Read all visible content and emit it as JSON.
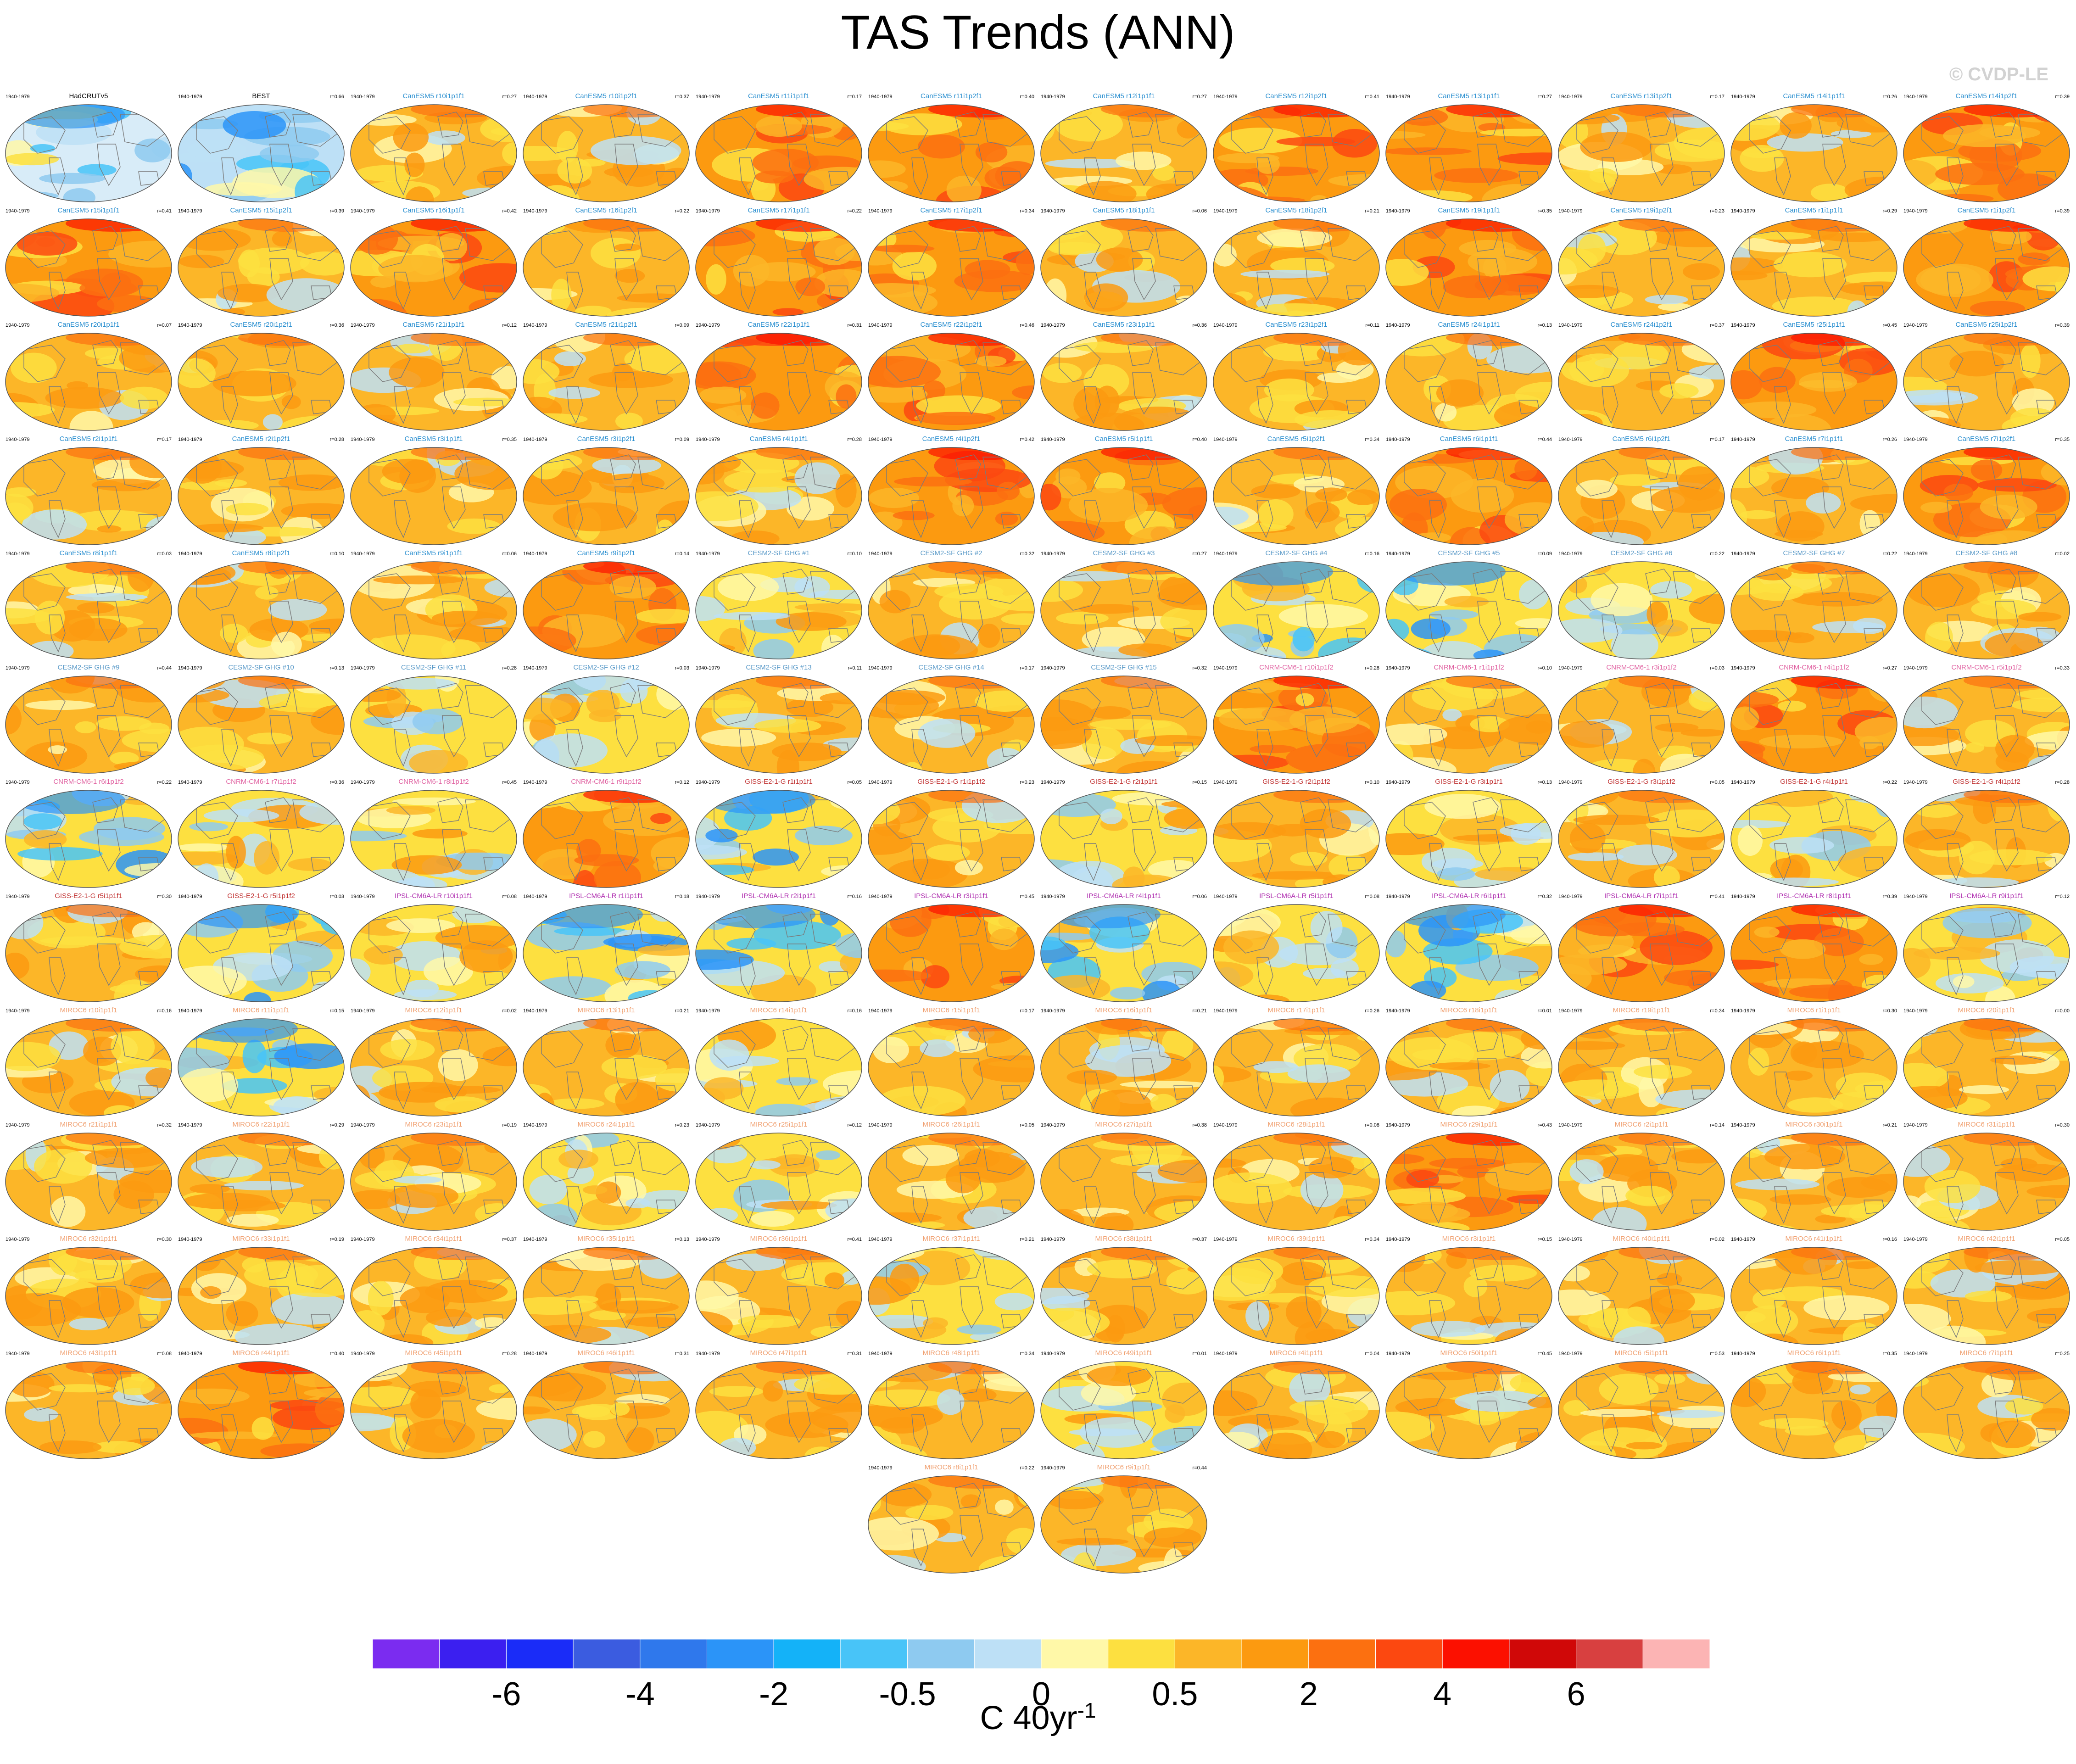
{
  "title": "TAS Trends (ANN)",
  "watermark": "© CVDP-LE",
  "colorbar": {
    "unit_base": "C 40yr",
    "unit_exp": "-1",
    "colors": [
      "#7b2cf0",
      "#3b1ff0",
      "#1a2cf8",
      "#3b5ce0",
      "#2f78ec",
      "#2b94f8",
      "#14b2f8",
      "#48c4f8",
      "#8ecaf0",
      "#bde0f6",
      "#fff8a8",
      "#fde040",
      "#fcb628",
      "#fc9a10",
      "#fc7010",
      "#fc4810",
      "#fc1000",
      "#d00808",
      "#d84040",
      "#fcb4b4"
    ],
    "ticks": [
      {
        "after_box": 2,
        "label": "-6"
      },
      {
        "after_box": 4,
        "label": "-4"
      },
      {
        "after_box": 6,
        "label": "-2"
      },
      {
        "after_box": 8,
        "label": "-0.5"
      },
      {
        "after_box": 10,
        "label": "0"
      },
      {
        "after_box": 12,
        "label": "0.5"
      },
      {
        "after_box": 14,
        "label": "2"
      },
      {
        "after_box": 16,
        "label": "4"
      },
      {
        "after_box": 18,
        "label": "6"
      }
    ]
  },
  "period": "1940-1979",
  "panels": [
    {
      "name": "HadCRUTv5",
      "r": "",
      "color": "#000000",
      "t": "obs1"
    },
    {
      "name": "BEST",
      "r": "r=0.66",
      "color": "#000000",
      "t": "obs2"
    },
    {
      "name": "CanESM5 r10i1p1f1",
      "r": "r=0.27",
      "color": "#2a8fd0",
      "t": "warm"
    },
    {
      "name": "CanESM5 r10i1p2f1",
      "r": "r=0.37",
      "color": "#2a8fd0",
      "t": "warm"
    },
    {
      "name": "CanESM5 r11i1p1f1",
      "r": "r=0.17",
      "color": "#2a8fd0",
      "t": "hot"
    },
    {
      "name": "CanESM5 r11i1p2f1",
      "r": "r=0.40",
      "color": "#2a8fd0",
      "t": "hot"
    },
    {
      "name": "CanESM5 r12i1p1f1",
      "r": "r=0.27",
      "color": "#2a8fd0",
      "t": "warm"
    },
    {
      "name": "CanESM5 r12i1p2f1",
      "r": "r=0.41",
      "color": "#2a8fd0",
      "t": "hot"
    },
    {
      "name": "CanESM5 r13i1p1f1",
      "r": "r=0.27",
      "color": "#2a8fd0",
      "t": "hot"
    },
    {
      "name": "CanESM5 r13i1p2f1",
      "r": "r=0.17",
      "color": "#2a8fd0",
      "t": "warm"
    },
    {
      "name": "CanESM5 r14i1p1f1",
      "r": "r=0.26",
      "color": "#2a8fd0",
      "t": "warm"
    },
    {
      "name": "CanESM5 r14i1p2f1",
      "r": "r=0.39",
      "color": "#2a8fd0",
      "t": "hot"
    },
    {
      "name": "CanESM5 r15i1p1f1",
      "r": "r=0.41",
      "color": "#2a8fd0",
      "t": "hot"
    },
    {
      "name": "CanESM5 r15i1p2f1",
      "r": "r=0.39",
      "color": "#2a8fd0",
      "t": "warm"
    },
    {
      "name": "CanESM5 r16i1p1f1",
      "r": "r=0.42",
      "color": "#2a8fd0",
      "t": "hot"
    },
    {
      "name": "CanESM5 r16i1p2f1",
      "r": "r=0.22",
      "color": "#2a8fd0",
      "t": "warm"
    },
    {
      "name": "CanESM5 r17i1p1f1",
      "r": "r=0.22",
      "color": "#2a8fd0",
      "t": "hot"
    },
    {
      "name": "CanESM5 r17i1p2f1",
      "r": "r=0.34",
      "color": "#2a8fd0",
      "t": "hot"
    },
    {
      "name": "CanESM5 r18i1p1f1",
      "r": "r=0.06",
      "color": "#2a8fd0",
      "t": "warm"
    },
    {
      "name": "CanESM5 r18i1p2f1",
      "r": "r=0.21",
      "color": "#2a8fd0",
      "t": "warm"
    },
    {
      "name": "CanESM5 r19i1p1f1",
      "r": "r=0.35",
      "color": "#2a8fd0",
      "t": "hot"
    },
    {
      "name": "CanESM5 r19i1p2f1",
      "r": "r=0.23",
      "color": "#2a8fd0",
      "t": "warm"
    },
    {
      "name": "CanESM5 r1i1p1f1",
      "r": "r=0.29",
      "color": "#2a8fd0",
      "t": "warm"
    },
    {
      "name": "CanESM5 r1i1p2f1",
      "r": "r=0.39",
      "color": "#2a8fd0",
      "t": "hot"
    },
    {
      "name": "CanESM5 r20i1p1f1",
      "r": "r=0.07",
      "color": "#2a8fd0",
      "t": "warm"
    },
    {
      "name": "CanESM5 r20i1p2f1",
      "r": "r=0.36",
      "color": "#2a8fd0",
      "t": "warm"
    },
    {
      "name": "CanESM5 r21i1p1f1",
      "r": "r=0.12",
      "color": "#2a8fd0",
      "t": "warm"
    },
    {
      "name": "CanESM5 r21i1p2f1",
      "r": "r=0.09",
      "color": "#2a8fd0",
      "t": "warm"
    },
    {
      "name": "CanESM5 r22i1p1f1",
      "r": "r=0.31",
      "color": "#2a8fd0",
      "t": "hot"
    },
    {
      "name": "CanESM5 r22i1p2f1",
      "r": "r=0.46",
      "color": "#2a8fd0",
      "t": "hot"
    },
    {
      "name": "CanESM5 r23i1p1f1",
      "r": "r=0.36",
      "color": "#2a8fd0",
      "t": "warm"
    },
    {
      "name": "CanESM5 r23i1p2f1",
      "r": "r=0.11",
      "color": "#2a8fd0",
      "t": "warm"
    },
    {
      "name": "CanESM5 r24i1p1f1",
      "r": "r=0.13",
      "color": "#2a8fd0",
      "t": "warm"
    },
    {
      "name": "CanESM5 r24i1p2f1",
      "r": "r=0.37",
      "color": "#2a8fd0",
      "t": "warm"
    },
    {
      "name": "CanESM5 r25i1p1f1",
      "r": "r=0.45",
      "color": "#2a8fd0",
      "t": "hot"
    },
    {
      "name": "CanESM5 r25i1p2f1",
      "r": "r=0.39",
      "color": "#2a8fd0",
      "t": "warm"
    },
    {
      "name": "CanESM5 r2i1p1f1",
      "r": "r=0.17",
      "color": "#2a8fd0",
      "t": "warm"
    },
    {
      "name": "CanESM5 r2i1p2f1",
      "r": "r=0.28",
      "color": "#2a8fd0",
      "t": "warm"
    },
    {
      "name": "CanESM5 r3i1p1f1",
      "r": "r=0.35",
      "color": "#2a8fd0",
      "t": "warm"
    },
    {
      "name": "CanESM5 r3i1p2f1",
      "r": "r=0.09",
      "color": "#2a8fd0",
      "t": "warm"
    },
    {
      "name": "CanESM5 r4i1p1f1",
      "r": "r=0.28",
      "color": "#2a8fd0",
      "t": "warm"
    },
    {
      "name": "CanESM5 r4i1p2f1",
      "r": "r=0.42",
      "color": "#2a8fd0",
      "t": "hot"
    },
    {
      "name": "CanESM5 r5i1p1f1",
      "r": "r=0.40",
      "color": "#2a8fd0",
      "t": "hot"
    },
    {
      "name": "CanESM5 r5i1p2f1",
      "r": "r=0.34",
      "color": "#2a8fd0",
      "t": "warm"
    },
    {
      "name": "CanESM5 r6i1p1f1",
      "r": "r=0.44",
      "color": "#2a8fd0",
      "t": "hot"
    },
    {
      "name": "CanESM5 r6i1p2f1",
      "r": "r=0.17",
      "color": "#2a8fd0",
      "t": "warm"
    },
    {
      "name": "CanESM5 r7i1p1f1",
      "r": "r=0.26",
      "color": "#2a8fd0",
      "t": "warm"
    },
    {
      "name": "CanESM5 r7i1p2f1",
      "r": "r=0.35",
      "color": "#2a8fd0",
      "t": "hot"
    },
    {
      "name": "CanESM5 r8i1p1f1",
      "r": "r=0.03",
      "color": "#2a8fd0",
      "t": "warm"
    },
    {
      "name": "CanESM5 r8i1p2f1",
      "r": "r=0.10",
      "color": "#2a8fd0",
      "t": "warm"
    },
    {
      "name": "CanESM5 r9i1p1f1",
      "r": "r=0.06",
      "color": "#2a8fd0",
      "t": "warm"
    },
    {
      "name": "CanESM5 r9i1p2f1",
      "r": "r=0.14",
      "color": "#2a8fd0",
      "t": "hot"
    },
    {
      "name": "CESM2-SF GHG #1",
      "r": "r=0.10",
      "color": "#5a9ac8",
      "t": "mixed"
    },
    {
      "name": "CESM2-SF GHG #2",
      "r": "r=0.32",
      "color": "#5a9ac8",
      "t": "warm"
    },
    {
      "name": "CESM2-SF GHG #3",
      "r": "r=0.27",
      "color": "#5a9ac8",
      "t": "warm"
    },
    {
      "name": "CESM2-SF GHG #4",
      "r": "r=0.16",
      "color": "#5a9ac8",
      "t": "cool"
    },
    {
      "name": "CESM2-SF GHG #5",
      "r": "r=0.09",
      "color": "#5a9ac8",
      "t": "cool"
    },
    {
      "name": "CESM2-SF GHG #6",
      "r": "r=0.22",
      "color": "#5a9ac8",
      "t": "mixed"
    },
    {
      "name": "CESM2-SF GHG #7",
      "r": "r=0.22",
      "color": "#5a9ac8",
      "t": "warm"
    },
    {
      "name": "CESM2-SF GHG #8",
      "r": "r=0.02",
      "color": "#5a9ac8",
      "t": "warm"
    },
    {
      "name": "CESM2-SF GHG #9",
      "r": "r=0.44",
      "color": "#5a9ac8",
      "t": "warm"
    },
    {
      "name": "CESM2-SF GHG #10",
      "r": "r=0.13",
      "color": "#5a9ac8",
      "t": "warm"
    },
    {
      "name": "CESM2-SF GHG #11",
      "r": "r=0.28",
      "color": "#5a9ac8",
      "t": "mixed"
    },
    {
      "name": "CESM2-SF GHG #12",
      "r": "r=0.03",
      "color": "#5a9ac8",
      "t": "mixed"
    },
    {
      "name": "CESM2-SF GHG #13",
      "r": "r=0.11",
      "color": "#5a9ac8",
      "t": "warm"
    },
    {
      "name": "CESM2-SF GHG #14",
      "r": "r=0.17",
      "color": "#5a9ac8",
      "t": "warm"
    },
    {
      "name": "CESM2-SF GHG #15",
      "r": "r=0.32",
      "color": "#5a9ac8",
      "t": "warm"
    },
    {
      "name": "CNRM-CM6-1 r10i1p1f2",
      "r": "r=0.28",
      "color": "#e060a0",
      "t": "hot"
    },
    {
      "name": "CNRM-CM6-1 r1i1p1f2",
      "r": "r=0.10",
      "color": "#e060a0",
      "t": "warm"
    },
    {
      "name": "CNRM-CM6-1 r3i1p1f2",
      "r": "r=0.03",
      "color": "#e060a0",
      "t": "warm"
    },
    {
      "name": "CNRM-CM6-1 r4i1p1f2",
      "r": "r=0.27",
      "color": "#e060a0",
      "t": "hot"
    },
    {
      "name": "CNRM-CM6-1 r5i1p1f2",
      "r": "r=0.33",
      "color": "#e060a0",
      "t": "warm"
    },
    {
      "name": "CNRM-CM6-1 r6i1p1f2",
      "r": "r=0.22",
      "color": "#e060a0",
      "t": "cool"
    },
    {
      "name": "CNRM-CM6-1 r7i1p1f2",
      "r": "r=0.36",
      "color": "#e060a0",
      "t": "mixed"
    },
    {
      "name": "CNRM-CM6-1 r8i1p1f2",
      "r": "r=0.45",
      "color": "#e060a0",
      "t": "mixed"
    },
    {
      "name": "CNRM-CM6-1 r9i1p1f2",
      "r": "r=0.12",
      "color": "#e060a0",
      "t": "hot"
    },
    {
      "name": "GISS-E2-1-G r1i1p1f1",
      "r": "r=0.05",
      "color": "#c03030",
      "t": "cool"
    },
    {
      "name": "GISS-E2-1-G r1i1p1f2",
      "r": "r=0.23",
      "color": "#c03030",
      "t": "warm"
    },
    {
      "name": "GISS-E2-1-G r2i1p1f1",
      "r": "r=0.15",
      "color": "#c03030",
      "t": "mixed"
    },
    {
      "name": "GISS-E2-1-G r2i1p1f2",
      "r": "r=0.10",
      "color": "#c03030",
      "t": "warm"
    },
    {
      "name": "GISS-E2-1-G r3i1p1f1",
      "r": "r=0.13",
      "color": "#c03030",
      "t": "mixed"
    },
    {
      "name": "GISS-E2-1-G r3i1p1f2",
      "r": "r=0.05",
      "color": "#c03030",
      "t": "warm"
    },
    {
      "name": "GISS-E2-1-G r4i1p1f1",
      "r": "r=0.22",
      "color": "#c03030",
      "t": "mixed"
    },
    {
      "name": "GISS-E2-1-G r4i1p1f2",
      "r": "r=0.28",
      "color": "#c03030",
      "t": "warm"
    },
    {
      "name": "GISS-E2-1-G r5i1p1f1",
      "r": "r=0.30",
      "color": "#c03030",
      "t": "warm"
    },
    {
      "name": "GISS-E2-1-G r5i1p1f2",
      "r": "r=0.03",
      "color": "#c03030",
      "t": "cool"
    },
    {
      "name": "IPSL-CM6A-LR r10i1p1f1",
      "r": "r=0.08",
      "color": "#b030b0",
      "t": "mixed"
    },
    {
      "name": "IPSL-CM6A-LR r1i1p1f1",
      "r": "r=0.18",
      "color": "#b030b0",
      "t": "cool"
    },
    {
      "name": "IPSL-CM6A-LR r2i1p1f1",
      "r": "r=0.16",
      "color": "#b030b0",
      "t": "cool"
    },
    {
      "name": "IPSL-CM6A-LR r3i1p1f1",
      "r": "r=0.45",
      "color": "#b030b0",
      "t": "hot"
    },
    {
      "name": "IPSL-CM6A-LR r4i1p1f1",
      "r": "r=0.06",
      "color": "#b030b0",
      "t": "cool"
    },
    {
      "name": "IPSL-CM6A-LR r5i1p1f1",
      "r": "r=0.08",
      "color": "#b030b0",
      "t": "mixed"
    },
    {
      "name": "IPSL-CM6A-LR r6i1p1f1",
      "r": "r=0.32",
      "color": "#b030b0",
      "t": "cool"
    },
    {
      "name": "IPSL-CM6A-LR r7i1p1f1",
      "r": "r=0.41",
      "color": "#b030b0",
      "t": "hot"
    },
    {
      "name": "IPSL-CM6A-LR r8i1p1f1",
      "r": "r=0.39",
      "color": "#b030b0",
      "t": "hot"
    },
    {
      "name": "IPSL-CM6A-LR r9i1p1f1",
      "r": "r=0.12",
      "color": "#b030b0",
      "t": "mixed"
    },
    {
      "name": "MIROC6 r10i1p1f1",
      "r": "r=0.16",
      "color": "#f0a070",
      "t": "warm"
    },
    {
      "name": "MIROC6 r11i1p1f1",
      "r": "r=0.15",
      "color": "#f0a070",
      "t": "cool"
    },
    {
      "name": "MIROC6 r12i1p1f1",
      "r": "r=0.02",
      "color": "#f0a070",
      "t": "warm"
    },
    {
      "name": "MIROC6 r13i1p1f1",
      "r": "r=0.21",
      "color": "#f0a070",
      "t": "warm"
    },
    {
      "name": "MIROC6 r14i1p1f1",
      "r": "r=0.16",
      "color": "#f0a070",
      "t": "mixed"
    },
    {
      "name": "MIROC6 r15i1p1f1",
      "r": "r=0.17",
      "color": "#f0a070",
      "t": "warm"
    },
    {
      "name": "MIROC6 r16i1p1f1",
      "r": "r=0.21",
      "color": "#f0a070",
      "t": "warm"
    },
    {
      "name": "MIROC6 r17i1p1f1",
      "r": "r=0.26",
      "color": "#f0a070",
      "t": "warm"
    },
    {
      "name": "MIROC6 r18i1p1f1",
      "r": "r=0.01",
      "color": "#f0a070",
      "t": "warm"
    },
    {
      "name": "MIROC6 r19i1p1f1",
      "r": "r=0.34",
      "color": "#f0a070",
      "t": "warm"
    },
    {
      "name": "MIROC6 r1i1p1f1",
      "r": "r=0.30",
      "color": "#f0a070",
      "t": "warm"
    },
    {
      "name": "MIROC6 r20i1p1f1",
      "r": "r=0.00",
      "color": "#f0a070",
      "t": "warm"
    },
    {
      "name": "MIROC6 r21i1p1f1",
      "r": "r=0.32",
      "color": "#f0a070",
      "t": "warm"
    },
    {
      "name": "MIROC6 r22i1p1f1",
      "r": "r=0.29",
      "color": "#f0a070",
      "t": "warm"
    },
    {
      "name": "MIROC6 r23i1p1f1",
      "r": "r=0.19",
      "color": "#f0a070",
      "t": "warm"
    },
    {
      "name": "MIROC6 r24i1p1f1",
      "r": "r=0.23",
      "color": "#f0a070",
      "t": "mixed"
    },
    {
      "name": "MIROC6 r25i1p1f1",
      "r": "r=0.12",
      "color": "#f0a070",
      "t": "mixed"
    },
    {
      "name": "MIROC6 r26i1p1f1",
      "r": "r=0.05",
      "color": "#f0a070",
      "t": "warm"
    },
    {
      "name": "MIROC6 r27i1p1f1",
      "r": "r=0.38",
      "color": "#f0a070",
      "t": "warm"
    },
    {
      "name": "MIROC6 r28i1p1f1",
      "r": "r=0.08",
      "color": "#f0a070",
      "t": "warm"
    },
    {
      "name": "MIROC6 r29i1p1f1",
      "r": "r=0.43",
      "color": "#f0a070",
      "t": "hot"
    },
    {
      "name": "MIROC6 r2i1p1f1",
      "r": "r=0.14",
      "color": "#f0a070",
      "t": "warm"
    },
    {
      "name": "MIROC6 r30i1p1f1",
      "r": "r=0.21",
      "color": "#f0a070",
      "t": "warm"
    },
    {
      "name": "MIROC6 r31i1p1f1",
      "r": "r=0.30",
      "color": "#f0a070",
      "t": "warm"
    },
    {
      "name": "MIROC6 r32i1p1f1",
      "r": "r=0.30",
      "color": "#f0a070",
      "t": "warm"
    },
    {
      "name": "MIROC6 r33i1p1f1",
      "r": "r=0.19",
      "color": "#f0a070",
      "t": "warm"
    },
    {
      "name": "MIROC6 r34i1p1f1",
      "r": "r=0.37",
      "color": "#f0a070",
      "t": "warm"
    },
    {
      "name": "MIROC6 r35i1p1f1",
      "r": "r=0.13",
      "color": "#f0a070",
      "t": "warm"
    },
    {
      "name": "MIROC6 r36i1p1f1",
      "r": "r=0.41",
      "color": "#f0a070",
      "t": "warm"
    },
    {
      "name": "MIROC6 r37i1p1f1",
      "r": "r=0.21",
      "color": "#f0a070",
      "t": "mixed"
    },
    {
      "name": "MIROC6 r38i1p1f1",
      "r": "r=0.37",
      "color": "#f0a070",
      "t": "warm"
    },
    {
      "name": "MIROC6 r39i1p1f1",
      "r": "r=0.34",
      "color": "#f0a070",
      "t": "warm"
    },
    {
      "name": "MIROC6 r3i1p1f1",
      "r": "r=0.15",
      "color": "#f0a070",
      "t": "warm"
    },
    {
      "name": "MIROC6 r40i1p1f1",
      "r": "r=0.02",
      "color": "#f0a070",
      "t": "warm"
    },
    {
      "name": "MIROC6 r41i1p1f1",
      "r": "r=0.16",
      "color": "#f0a070",
      "t": "warm"
    },
    {
      "name": "MIROC6 r42i1p1f1",
      "r": "r=0.05",
      "color": "#f0a070",
      "t": "warm"
    },
    {
      "name": "MIROC6 r43i1p1f1",
      "r": "r=0.08",
      "color": "#f0a070",
      "t": "warm"
    },
    {
      "name": "MIROC6 r44i1p1f1",
      "r": "r=0.40",
      "color": "#f0a070",
      "t": "hot"
    },
    {
      "name": "MIROC6 r45i1p1f1",
      "r": "r=0.28",
      "color": "#f0a070",
      "t": "warm"
    },
    {
      "name": "MIROC6 r46i1p1f1",
      "r": "r=0.31",
      "color": "#f0a070",
      "t": "warm"
    },
    {
      "name": "MIROC6 r47i1p1f1",
      "r": "r=0.31",
      "color": "#f0a070",
      "t": "warm"
    },
    {
      "name": "MIROC6 r48i1p1f1",
      "r": "r=0.34",
      "color": "#f0a070",
      "t": "warm"
    },
    {
      "name": "MIROC6 r49i1p1f1",
      "r": "r=0.01",
      "color": "#f0a070",
      "t": "mixed"
    },
    {
      "name": "MIROC6 r4i1p1f1",
      "r": "r=0.04",
      "color": "#f0a070",
      "t": "warm"
    },
    {
      "name": "MIROC6 r50i1p1f1",
      "r": "r=0.45",
      "color": "#f0a070",
      "t": "warm"
    },
    {
      "name": "MIROC6 r5i1p1f1",
      "r": "r=0.53",
      "color": "#f0a070",
      "t": "warm"
    },
    {
      "name": "MIROC6 r6i1p1f1",
      "r": "r=0.35",
      "color": "#f0a070",
      "t": "warm"
    },
    {
      "name": "MIROC6 r7i1p1f1",
      "r": "r=0.25",
      "color": "#f0a070",
      "t": "warm"
    },
    {
      "name": "MIROC6 r8i1p1f1",
      "r": "r=0.22",
      "color": "#f0a070",
      "t": "warm"
    },
    {
      "name": "MIROC6 r9i1p1f1",
      "r": "r=0.44",
      "color": "#f0a070",
      "t": "warm"
    }
  ],
  "chart_data": {
    "type": "heatmap",
    "title": "TAS Trends (ANN)",
    "colorbar_label": "C 40yr-1",
    "colorbar_tick_labels": [
      "-6",
      "-4",
      "-2",
      "-0.5",
      "0",
      "0.5",
      "2",
      "4",
      "6"
    ],
    "panel_count": 146,
    "grid": "12 columns x 13 rows (last row 2 panels centered)"
  }
}
